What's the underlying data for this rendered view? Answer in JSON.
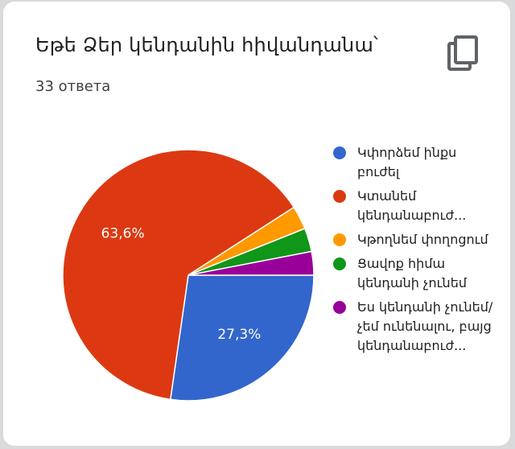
{
  "title": "Եթե Ձեր կենդանին հիվանդանա՝",
  "subtitle": "33 ответа",
  "icons": {
    "copy": "copy-icon"
  },
  "chart_data": {
    "type": "pie",
    "total": 33,
    "slices": [
      {
        "label": "Կփորձեմ ինքս բուժել",
        "value": 9,
        "percent_label": "27,3%",
        "color": "#3366cc",
        "lines": 2
      },
      {
        "label": "Կտանեմ կենդանաբուժ...",
        "value": 21,
        "percent_label": "63,6%",
        "color": "#dc3912",
        "lines": 2
      },
      {
        "label": "Կթողնեմ փողոցում",
        "value": 1,
        "percent_label": "",
        "color": "#ff9900",
        "lines": 2
      },
      {
        "label": "Ցավոք հիմա կենդանի չունեմ",
        "value": 1,
        "percent_label": "",
        "color": "#109618",
        "lines": 2
      },
      {
        "label": "Ես կենդանի չունեմ/չեմ ունենալու, բայց կենդանաբուժ...",
        "value": 1,
        "percent_label": "",
        "color": "#990099",
        "lines": 4
      }
    ],
    "legend_position": "right"
  }
}
